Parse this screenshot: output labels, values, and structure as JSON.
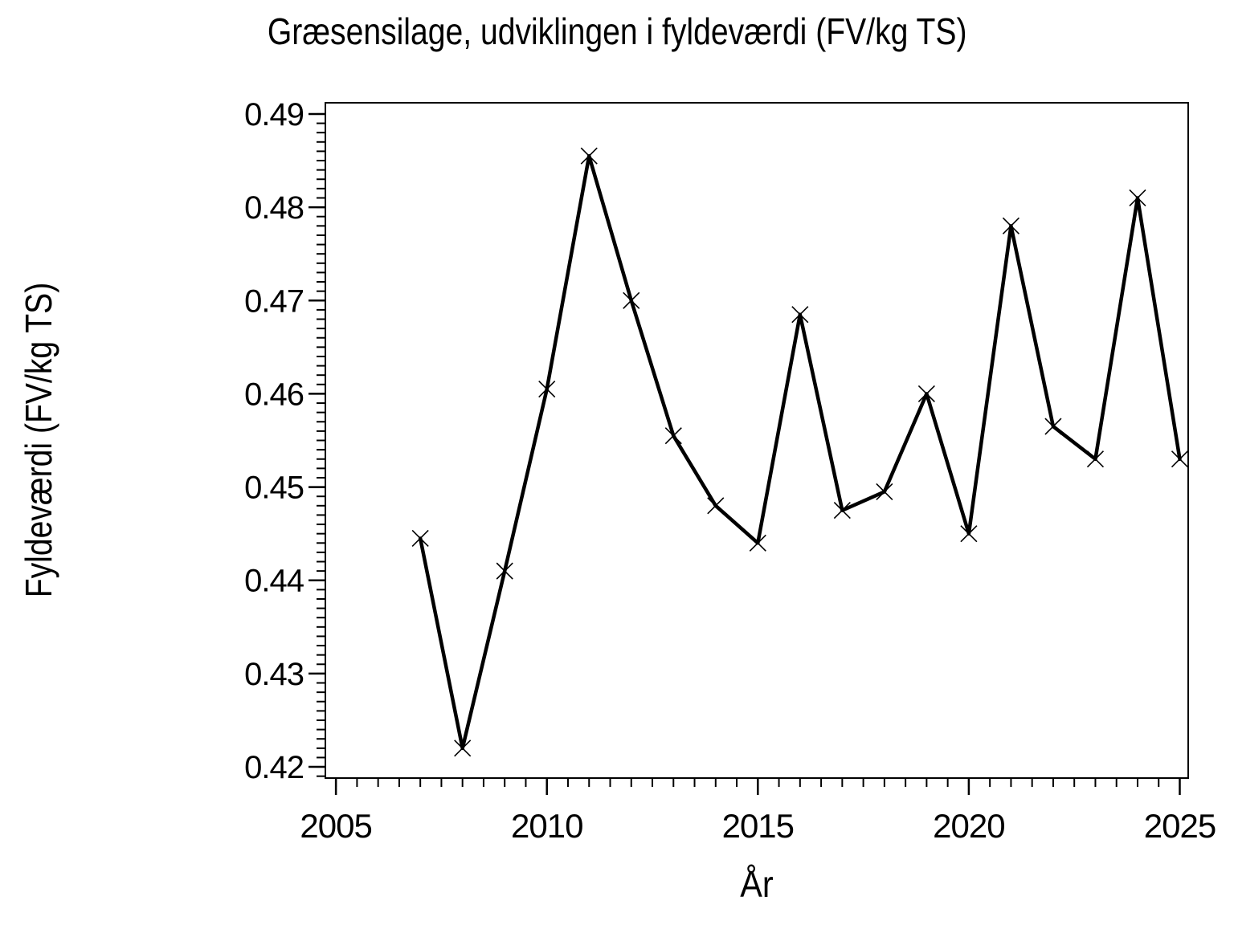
{
  "figure": {
    "title": "Græsensilage, udviklingen i fyldeværdi (FV/kg TS)",
    "xlabel": "År",
    "ylabel": "Fyldeværdi (FV/kg TS)"
  },
  "chart_data": {
    "type": "line",
    "title": "Græsensilage, udviklingen i fyldeværdi (FV/kg TS)",
    "xlabel": "År",
    "ylabel": "Fyldeværdi (FV/kg TS)",
    "x": [
      2007,
      2008,
      2009,
      2010,
      2011,
      2012,
      2013,
      2014,
      2015,
      2016,
      2017,
      2018,
      2019,
      2020,
      2021,
      2022,
      2023,
      2024,
      2025
    ],
    "y": [
      0.4445,
      0.422,
      0.441,
      0.4605,
      0.4855,
      0.47,
      0.4555,
      0.448,
      0.444,
      0.4685,
      0.4475,
      0.4495,
      0.46,
      0.445,
      0.478,
      0.4565,
      0.453,
      0.481,
      0.453
    ],
    "marker": "x",
    "line_color": "#000000",
    "background_color": "#ffffff",
    "xlim": [
      2004.75,
      2025.2
    ],
    "ylim": [
      0.4188,
      0.4912
    ],
    "x_major_ticks": [
      2005,
      2010,
      2015,
      2020,
      2025
    ],
    "x_tick_labels": [
      "2005",
      "2010",
      "2015",
      "2020",
      "2025"
    ],
    "x_minor_step": 0.5,
    "x_minor_range": [
      2005,
      2025
    ],
    "y_major_ticks": [
      0.42,
      0.43,
      0.44,
      0.45,
      0.46,
      0.47,
      0.48,
      0.49
    ],
    "y_tick_labels": [
      "0.42",
      "0.43",
      "0.44",
      "0.45",
      "0.46",
      "0.47",
      "0.48",
      "0.49"
    ],
    "y_minor_step": 0.001,
    "y_minor_range": [
      0.419,
      0.49
    ],
    "grid": false,
    "legend": "none"
  }
}
